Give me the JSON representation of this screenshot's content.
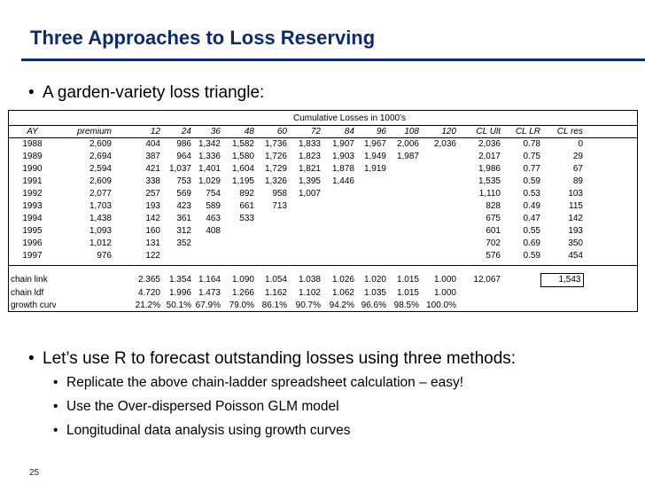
{
  "slide": {
    "title": "Three Approaches to Loss Reserving",
    "bullet1": "A garden-variety loss triangle:",
    "bullet2": "Let’s use R to forecast outstanding losses using three methods:",
    "sub_bullets": [
      "Replicate the above chain-ladder spreadsheet calculation – easy!",
      "Use the Over-dispersed Poisson GLM model",
      "Longitudinal data analysis using growth curves"
    ],
    "bullet_glyph": "•",
    "page_number": "25",
    "colors": {
      "title": "#0d2b6b",
      "rule": "#0d2b6b",
      "page_number": "#0d2b6b"
    }
  },
  "sheet": {
    "title": "Cumulative Losses in 1000's",
    "headers": [
      "AY",
      "premium",
      "12",
      "24",
      "36",
      "48",
      "60",
      "72",
      "84",
      "96",
      "108",
      "120",
      "CL Ult",
      "CL LR",
      "CL res"
    ],
    "rows": [
      [
        "1988",
        "2,609",
        "404",
        "986",
        "1,342",
        "1,582",
        "1,736",
        "1,833",
        "1,907",
        "1,967",
        "2,006",
        "2,036",
        "2,036",
        "0.78",
        "0"
      ],
      [
        "1989",
        "2,694",
        "387",
        "964",
        "1,336",
        "1,580",
        "1,726",
        "1,823",
        "1,903",
        "1,949",
        "1,987",
        "",
        "2,017",
        "0.75",
        "29"
      ],
      [
        "1990",
        "2,594",
        "421",
        "1,037",
        "1,401",
        "1,604",
        "1,729",
        "1,821",
        "1,878",
        "1,919",
        "",
        "",
        "1,986",
        "0.77",
        "67"
      ],
      [
        "1991",
        "2,609",
        "338",
        "753",
        "1,029",
        "1,195",
        "1,326",
        "1,395",
        "1,446",
        "",
        "",
        "",
        "1,535",
        "0.59",
        "89"
      ],
      [
        "1992",
        "2,077",
        "257",
        "569",
        "754",
        "892",
        "958",
        "1,007",
        "",
        "",
        "",
        "",
        "1,110",
        "0.53",
        "103"
      ],
      [
        "1993",
        "1,703",
        "193",
        "423",
        "589",
        "661",
        "713",
        "",
        "",
        "",
        "",
        "",
        "828",
        "0.49",
        "115"
      ],
      [
        "1994",
        "1,438",
        "142",
        "361",
        "463",
        "533",
        "",
        "",
        "",
        "",
        "",
        "",
        "675",
        "0.47",
        "142"
      ],
      [
        "1995",
        "1,093",
        "160",
        "312",
        "408",
        "",
        "",
        "",
        "",
        "",
        "",
        "",
        "601",
        "0.55",
        "193"
      ],
      [
        "1996",
        "1,012",
        "131",
        "352",
        "",
        "",
        "",
        "",
        "",
        "",
        "",
        "",
        "702",
        "0.69",
        "350"
      ],
      [
        "1997",
        "976",
        "122",
        "",
        "",
        "",
        "",
        "",
        "",
        "",
        "",
        "",
        "576",
        "0.59",
        "454"
      ]
    ],
    "summary": [
      [
        "chain link",
        "",
        "2.365",
        "1.354",
        "1.164",
        "1.090",
        "1.054",
        "1.038",
        "1.026",
        "1.020",
        "1.015",
        "1.000",
        "12,067",
        "",
        "1,543"
      ],
      [
        "chain ldf",
        "",
        "4.720",
        "1.996",
        "1.473",
        "1.266",
        "1.162",
        "1.102",
        "1.062",
        "1.035",
        "1.015",
        "1.000",
        "",
        "",
        ""
      ],
      [
        "growth curve",
        "",
        "21.2%",
        "50.1%",
        "67.9%",
        "79.0%",
        "86.1%",
        "90.7%",
        "94.2%",
        "96.6%",
        "98.5%",
        "100.0%",
        "",
        "",
        ""
      ]
    ]
  }
}
